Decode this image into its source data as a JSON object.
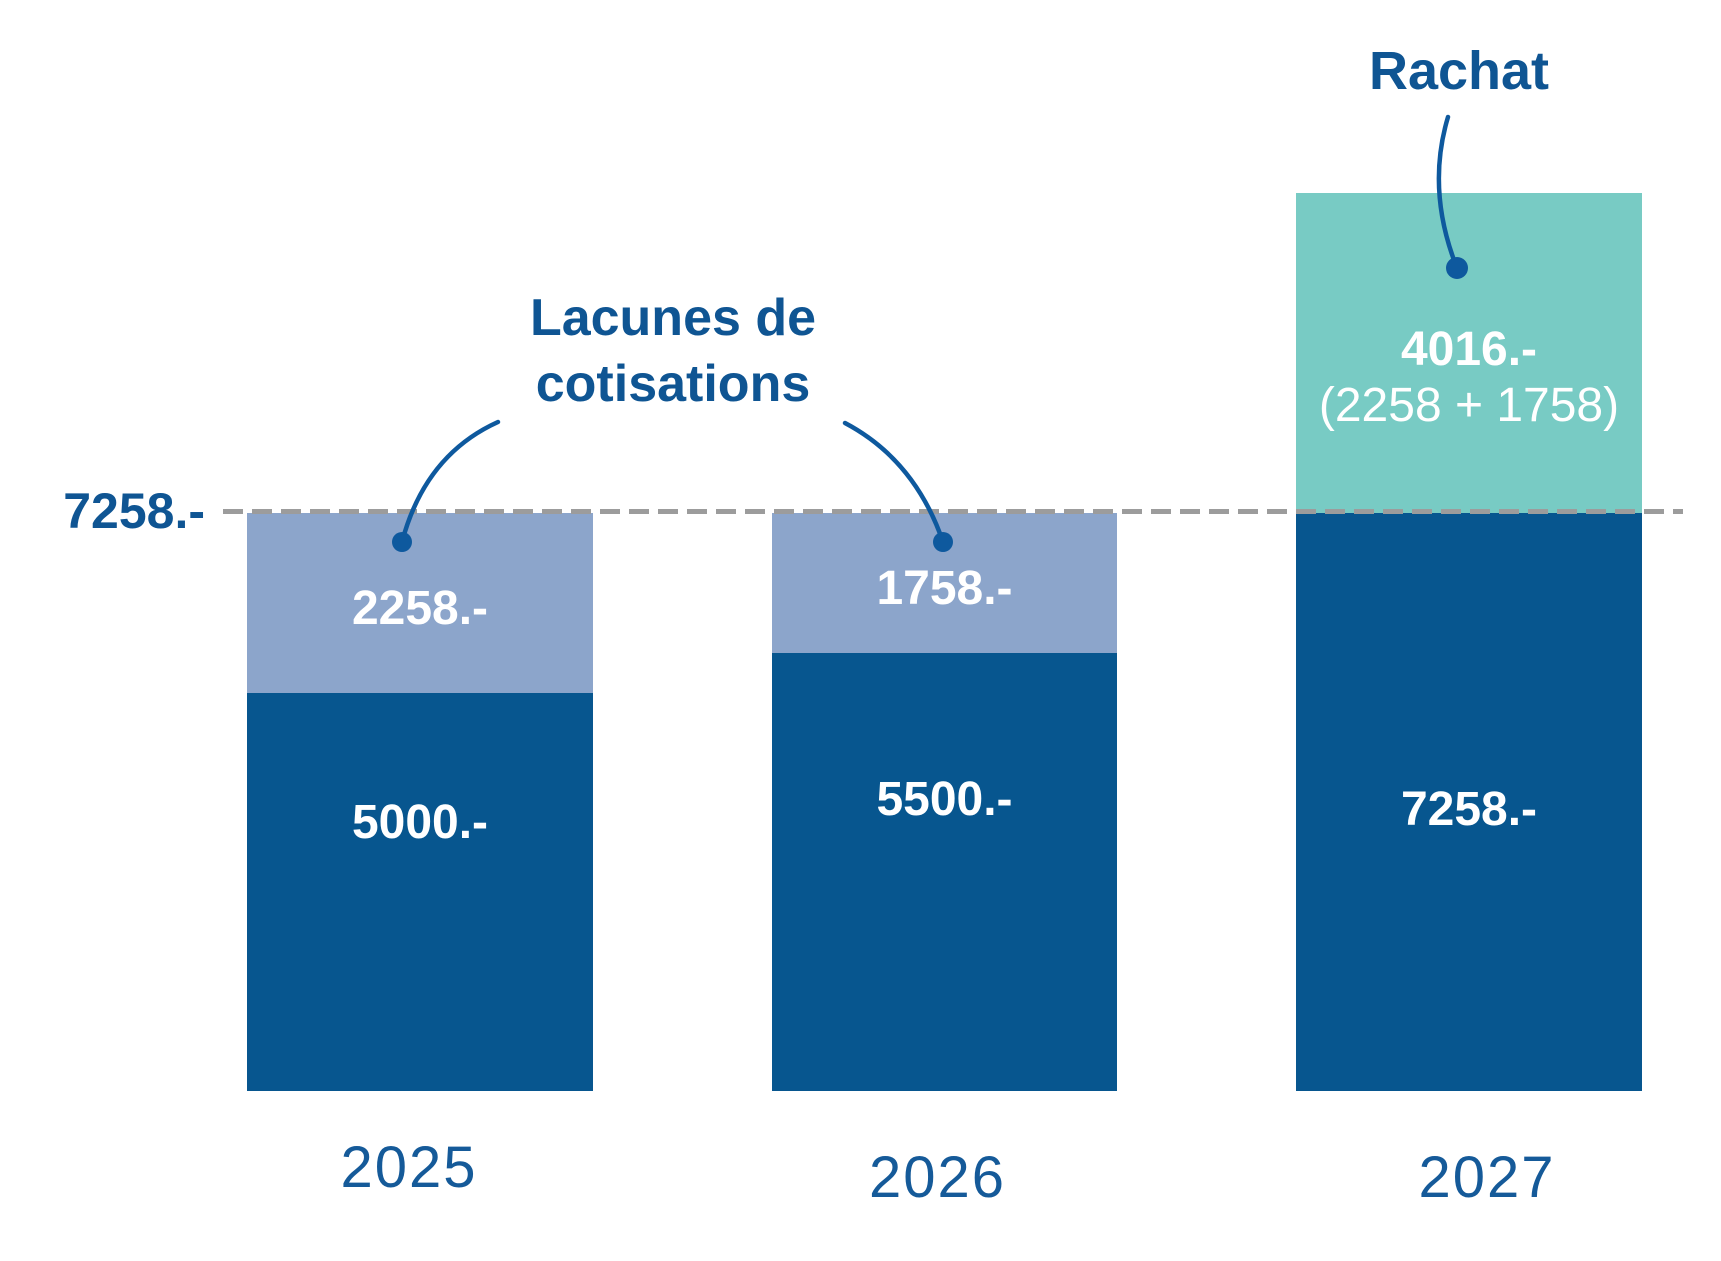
{
  "axis": {
    "reference_label": "7258.-"
  },
  "annotations": {
    "gaps_title": {
      "lines": [
        "Lacunes de",
        "cotisations"
      ]
    },
    "rachat_title": "Rachat"
  },
  "chart_data": {
    "type": "bar",
    "stacked": true,
    "categories": [
      "2025",
      "2026",
      "2027"
    ],
    "series": [
      {
        "name": "base",
        "color": "#07568f",
        "values": [
          5000,
          5500,
          7258
        ],
        "labels": [
          "5000.-",
          "5500.-",
          "7258.-"
        ]
      },
      {
        "name": "lacunes_de_cotisations",
        "color": "#8ca5cb",
        "values": [
          2258,
          1758,
          0
        ],
        "labels": [
          "2258.-",
          "1758.-",
          ""
        ]
      },
      {
        "name": "rachat",
        "color": "#78cbc4",
        "values": [
          0,
          0,
          4016
        ],
        "labels": [
          "",
          "",
          "4016.-"
        ],
        "sublabels": [
          "",
          "",
          "(2258 + 1758)"
        ]
      }
    ],
    "reference_line": {
      "value": 7258,
      "label": "7258.-",
      "style": "dashed",
      "color": "#9c9c9c"
    },
    "annotation_texts": [
      "Lacunes de cotisations",
      "Rachat"
    ],
    "xlabel": "",
    "ylabel": "",
    "legend": "none",
    "grid": "off"
  },
  "colors": {
    "bar_dark_blue": "#07568f",
    "bar_light_blue": "#8ca5cb",
    "bar_teal": "#78cbc4",
    "text_blue": "#0f5593",
    "dash_gray": "#9c9c9c",
    "label_white": "#ffffff"
  }
}
